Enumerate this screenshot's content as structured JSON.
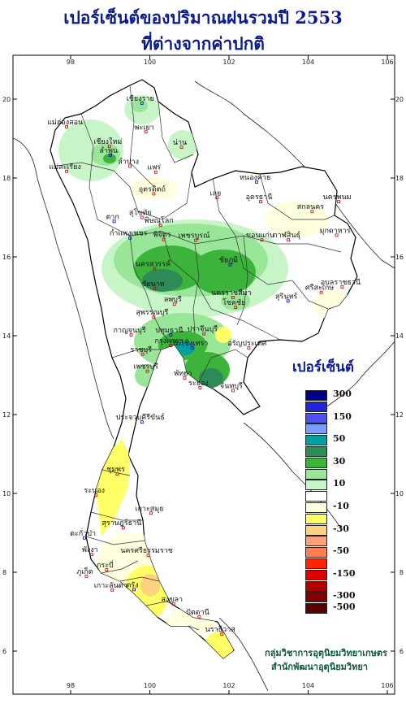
{
  "title": {
    "line1": "เปอร์เซ็นต์ของปริมาณฝนรวมปี  2553",
    "line2": "ที่ต่างจากค่าปกติ"
  },
  "axes": {
    "lon_ticks": [
      "98",
      "100",
      "102",
      "104",
      "106"
    ],
    "lat_ticks": [
      "20",
      "18",
      "16",
      "14",
      "12",
      "10",
      "8",
      "6"
    ]
  },
  "legend": {
    "title": "เปอร์เซ็นต์",
    "classes": [
      {
        "color": "#00008b",
        "label": "300"
      },
      {
        "color": "#2323d9",
        "label": ""
      },
      {
        "color": "#4f4fff",
        "label": "150"
      },
      {
        "color": "#7c9cff",
        "label": ""
      },
      {
        "color": "#00a0a0",
        "label": "50"
      },
      {
        "color": "#2e8b57",
        "label": ""
      },
      {
        "color": "#3cb43c",
        "label": "30"
      },
      {
        "color": "#99e699",
        "label": ""
      },
      {
        "color": "#c8f5c8",
        "label": "10"
      },
      {
        "color": "#ffffff",
        "label": ""
      },
      {
        "color": "#ffffe0",
        "label": "-10"
      },
      {
        "color": "#ffff66",
        "label": ""
      },
      {
        "color": "#ffd27f",
        "label": "-30"
      },
      {
        "color": "#ffa07a",
        "label": ""
      },
      {
        "color": "#ff7f50",
        "label": "-50"
      },
      {
        "color": "#ff2400",
        "label": ""
      },
      {
        "color": "#dd0000",
        "label": "-150"
      },
      {
        "color": "#b00000",
        "label": ""
      },
      {
        "color": "#800000",
        "label": "-300"
      },
      {
        "color": "#5a0000",
        "label": "-500"
      }
    ]
  },
  "places": [
    {
      "name": "เชียงราย",
      "lon": 99.8,
      "lat": 19.9
    },
    {
      "name": "แม่ฮ่องสอน",
      "lon": 97.9,
      "lat": 19.3
    },
    {
      "name": "เชียงใหม่",
      "lon": 98.98,
      "lat": 18.8
    },
    {
      "name": "พะเยา",
      "lon": 99.9,
      "lat": 19.17
    },
    {
      "name": "น่าน",
      "lon": 100.8,
      "lat": 18.78
    },
    {
      "name": "ลำพูน",
      "lon": 99.0,
      "lat": 18.58
    },
    {
      "name": "ลำปาง",
      "lon": 99.5,
      "lat": 18.3
    },
    {
      "name": "แพร่",
      "lon": 100.15,
      "lat": 18.15
    },
    {
      "name": "แม่สะเรียง",
      "lon": 97.9,
      "lat": 18.17
    },
    {
      "name": "อุตรดิตถ์",
      "lon": 100.1,
      "lat": 17.6
    },
    {
      "name": "หนองคาย",
      "lon": 102.7,
      "lat": 17.9
    },
    {
      "name": "อุดรธานี",
      "lon": 102.8,
      "lat": 17.4
    },
    {
      "name": "สกลนคร",
      "lon": 104.1,
      "lat": 17.15
    },
    {
      "name": "นครพนม",
      "lon": 104.77,
      "lat": 17.4
    },
    {
      "name": "เลย",
      "lon": 101.7,
      "lat": 17.5
    },
    {
      "name": "ตาก",
      "lon": 99.1,
      "lat": 16.9
    },
    {
      "name": "สุโขทัย",
      "lon": 99.8,
      "lat": 17.0
    },
    {
      "name": "พิษณุโลก",
      "lon": 100.27,
      "lat": 16.8
    },
    {
      "name": "กาฬสินธุ์",
      "lon": 103.5,
      "lat": 16.43
    },
    {
      "name": "มุกดาหาร",
      "lon": 104.72,
      "lat": 16.55
    },
    {
      "name": "กำแพงเพชร",
      "lon": 99.5,
      "lat": 16.48
    },
    {
      "name": "พิจิตร",
      "lon": 100.35,
      "lat": 16.44
    },
    {
      "name": "เพชรบูรณ์",
      "lon": 101.16,
      "lat": 16.42
    },
    {
      "name": "ขอนแก่น",
      "lon": 102.83,
      "lat": 16.43
    },
    {
      "name": "นครสวรรค์",
      "lon": 100.12,
      "lat": 15.7
    },
    {
      "name": "ชัยภูมิ",
      "lon": 102.03,
      "lat": 15.8
    },
    {
      "name": "อุบลราชธานี",
      "lon": 104.86,
      "lat": 15.24
    },
    {
      "name": "ชัยนาท",
      "lon": 100.12,
      "lat": 15.2
    },
    {
      "name": "ลพบุรี",
      "lon": 100.62,
      "lat": 14.8
    },
    {
      "name": "นครราชสีมา",
      "lon": 102.1,
      "lat": 14.97
    },
    {
      "name": "สุรินทร์",
      "lon": 103.49,
      "lat": 14.88
    },
    {
      "name": "ศรีสะเกษ",
      "lon": 104.33,
      "lat": 15.1
    },
    {
      "name": "สุพรรณบุรี",
      "lon": 100.1,
      "lat": 14.47
    },
    {
      "name": "โชคชัย",
      "lon": 102.17,
      "lat": 14.72
    },
    {
      "name": "กาญจนบุรี",
      "lon": 99.53,
      "lat": 14.02
    },
    {
      "name": "ปทุมธานี",
      "lon": 100.53,
      "lat": 14.02
    },
    {
      "name": "ปราจีนบุรี",
      "lon": 101.37,
      "lat": 14.05
    },
    {
      "name": "อรัญประเทศ",
      "lon": 102.5,
      "lat": 13.69
    },
    {
      "name": "ราชบุรี",
      "lon": 99.82,
      "lat": 13.53
    },
    {
      "name": "กรุงเทพฯ",
      "lon": 100.52,
      "lat": 13.75
    },
    {
      "name": "ฉะเชิงเทรา",
      "lon": 101.07,
      "lat": 13.69
    },
    {
      "name": "เพชรบุรี",
      "lon": 99.94,
      "lat": 13.1
    },
    {
      "name": "พัทยา",
      "lon": 100.88,
      "lat": 12.93
    },
    {
      "name": "จันทบุรี",
      "lon": 102.1,
      "lat": 12.61
    },
    {
      "name": "ระยอง",
      "lon": 101.27,
      "lat": 12.68
    },
    {
      "name": "ประจวบคีรีขันธ์",
      "lon": 99.8,
      "lat": 11.81
    },
    {
      "name": "ชุมพร",
      "lon": 99.18,
      "lat": 10.49
    },
    {
      "name": "ระนอง",
      "lon": 98.64,
      "lat": 9.96
    },
    {
      "name": "เกาะสมุย",
      "lon": 100.03,
      "lat": 9.5
    },
    {
      "name": "สุราษฎร์ธานี",
      "lon": 99.33,
      "lat": 9.13
    },
    {
      "name": "ตะกั่วป่า",
      "lon": 98.35,
      "lat": 8.87
    },
    {
      "name": "พังงา",
      "lon": 98.53,
      "lat": 8.45
    },
    {
      "name": "นครศรีธรรมราช",
      "lon": 99.96,
      "lat": 8.43
    },
    {
      "name": "ภูเก็ต",
      "lon": 98.4,
      "lat": 7.9
    },
    {
      "name": "กระบี่",
      "lon": 98.91,
      "lat": 8.06
    },
    {
      "name": "ตรัง",
      "lon": 99.6,
      "lat": 7.56
    },
    {
      "name": "เกาะลันตา",
      "lon": 99.05,
      "lat": 7.55
    },
    {
      "name": "สงขลา",
      "lon": 100.6,
      "lat": 7.2
    },
    {
      "name": "ปัตตานี",
      "lon": 101.25,
      "lat": 6.87
    },
    {
      "name": "นราธิวาส",
      "lon": 101.82,
      "lat": 6.43
    }
  ],
  "credit": {
    "line1": "กลุ่มวิชาการอุตุนิยมวิทยาเกษตร",
    "line2": "สำนักพัฒนาอุตุนิยมวิทยา"
  }
}
